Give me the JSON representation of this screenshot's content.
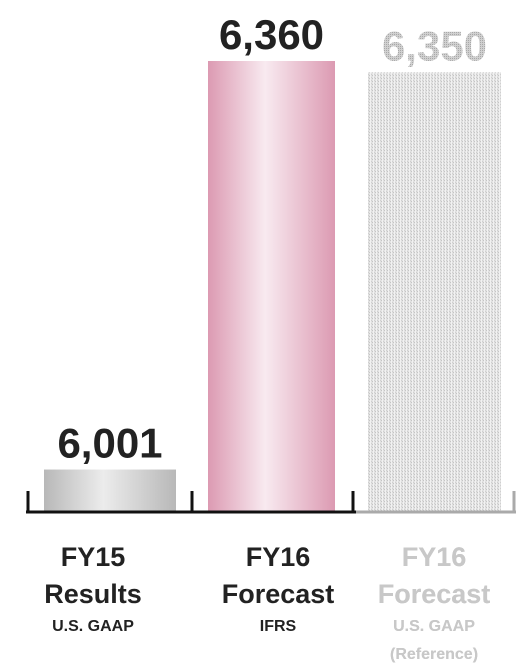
{
  "chart_data": {
    "type": "bar",
    "categories": [
      {
        "line1": "FY15",
        "line2": "Results",
        "line3": "U.S. GAAP",
        "line4": ""
      },
      {
        "line1": "FY16",
        "line2": "Forecast",
        "line3": "IFRS",
        "line4": ""
      },
      {
        "line1": "FY16",
        "line2": "Forecast",
        "line3": "U.S. GAAP",
        "line4": "(Reference)"
      }
    ],
    "values": [
      6001,
      6360,
      6350
    ],
    "value_labels": [
      "6,001",
      "6,360",
      "6,350"
    ],
    "styles": [
      "solid",
      "solid",
      "hatched"
    ],
    "colors": {
      "bar1_edge": "#b8b8b8",
      "bar1_mid": "#e8e8e8",
      "bar2_edge": "#dc9ab2",
      "bar2_mid": "#f7e8ee",
      "bar3": "#dcdcdc",
      "text_main": "#222222",
      "text_ref": "#c8c8c8",
      "axis": "#111111",
      "axis_ref": "#aaaaaa"
    },
    "title": "",
    "xlabel": "",
    "ylabel": "",
    "legend": "none",
    "grid": false
  }
}
